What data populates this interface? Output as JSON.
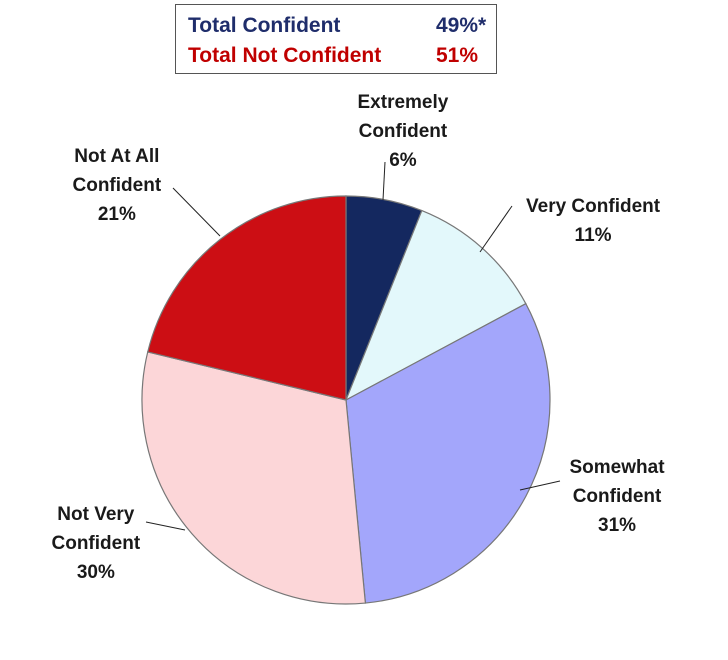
{
  "summary": {
    "total_confident_label": "Total Confident",
    "total_confident_value": "49%*",
    "total_not_confident_label": "Total Not Confident",
    "total_not_confident_value": "51%",
    "confident_color": "#1f2d6b",
    "not_confident_color": "#c00000"
  },
  "chart_data": {
    "type": "pie",
    "slices": [
      {
        "name": "Extremely Confident",
        "value": 6,
        "label_lines": [
          "Extremely",
          "Confident",
          "6%"
        ],
        "color": "#14285f"
      },
      {
        "name": "Very Confident",
        "value": 11,
        "label_lines": [
          "Very Confident",
          "11%"
        ],
        "color": "#e3f8fb"
      },
      {
        "name": "Somewhat Confident",
        "value": 31,
        "label_lines": [
          "Somewhat",
          "Confident",
          "31%"
        ],
        "color": "#a3a6fb"
      },
      {
        "name": "Not Very Confident",
        "value": 30,
        "label_lines": [
          "Not Very",
          "Confident",
          "30%"
        ],
        "color": "#fcd6d8"
      },
      {
        "name": "Not At All Confident",
        "value": 21,
        "label_lines": [
          "Not At All",
          "Confident",
          "21%"
        ],
        "color": "#cc0e14"
      }
    ]
  }
}
